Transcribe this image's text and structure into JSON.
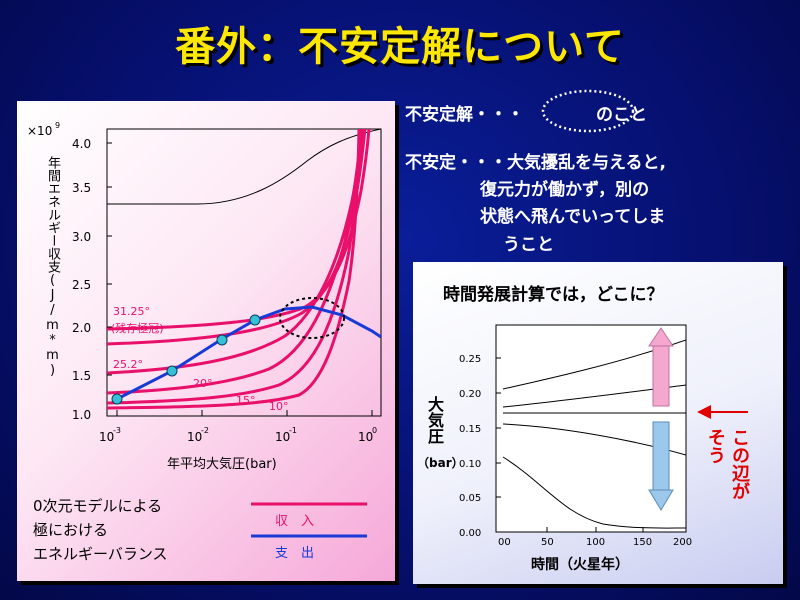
{
  "title": "番外：不安定解について",
  "definition": {
    "line1_prefix": "不安定解・・・",
    "line1_suffix": "のこと",
    "line2": "不安定・・・大気擾乱を与えると,",
    "line3": "復元力が働かず，別の",
    "line4": "状態へ飛んでいってしま",
    "line5": "うこと"
  },
  "left_chart": {
    "y_multiplier": "×10",
    "y_multiplier_exp": "9",
    "ylabel": "年間エネルギー収支(J/m*m)",
    "y_ticks": [
      "4.0",
      "3.5",
      "3.0",
      "2.5",
      "2.0",
      "1.5",
      "1.0"
    ],
    "x_ticks": [
      {
        "base": "10",
        "exp": "-3"
      },
      {
        "base": "10",
        "exp": "-2"
      },
      {
        "base": "10",
        "exp": "-1"
      },
      {
        "base": "10",
        "exp": "0"
      }
    ],
    "xlabel": "年平均大気圧(bar)",
    "curve_labels": [
      "31.25°",
      "(残存極冠)",
      "25.2°",
      "20°",
      "15°",
      "10°"
    ],
    "caption": [
      "0次元モデルによる",
      "極における",
      "エネルギーバランス"
    ],
    "legend": {
      "income": "収　入",
      "expense": "支　出"
    },
    "colors": {
      "income": "#e8106a",
      "expense": "#1a3ad8",
      "points": "#36c0d8"
    }
  },
  "right_chart": {
    "title": "時間発展計算では，どこに？",
    "ylabel": "大気圧",
    "yunit": "（bar）",
    "y_ticks": [
      "0.25",
      "0.20",
      "0.15",
      "0.10",
      "0.05",
      "0.00"
    ],
    "x_ticks": [
      "00",
      "50",
      "100",
      "150",
      "200"
    ],
    "xlabel": "時間（火星年）",
    "annotation_1": "この辺が",
    "annotation_2": "そう",
    "colors": {
      "annotation": "#e00000",
      "up_arrow": "#f4a8d0",
      "down_arrow": "#9cc8ec"
    }
  }
}
